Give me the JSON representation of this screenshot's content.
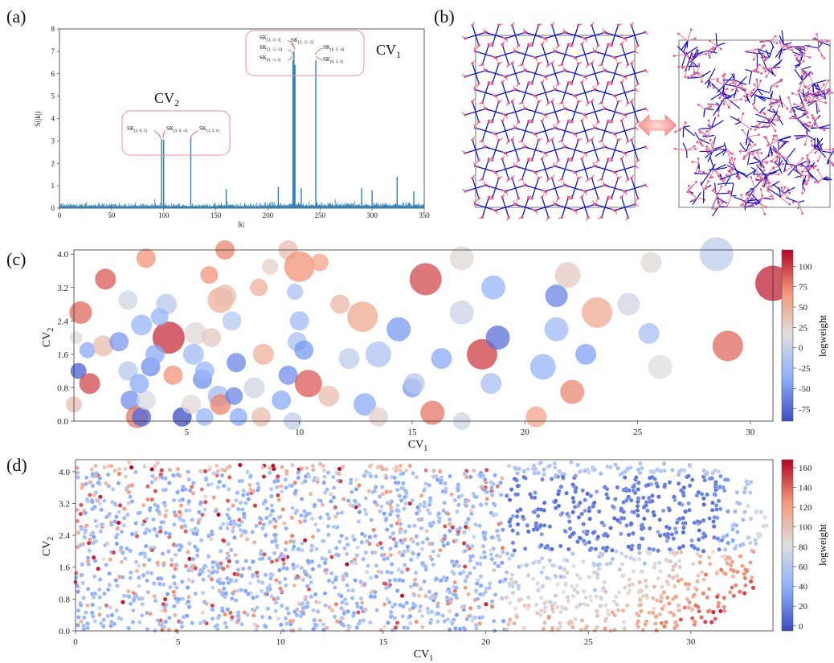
{
  "panels": {
    "a": "(a)",
    "b": "(b)",
    "c": "(c)",
    "d": "(d)"
  },
  "chart_data": [
    {
      "id": "a",
      "type": "bar",
      "xlabel": "|k|",
      "ylabel": "S(|k|)",
      "xlim": [
        0,
        350
      ],
      "ylim": [
        0,
        8
      ],
      "xticks": [
        "0",
        "50",
        "100",
        "150",
        "200",
        "250",
        "300",
        "350"
      ],
      "yticks": [
        "0",
        "1",
        "2",
        "3",
        "4",
        "5",
        "6",
        "7",
        "8"
      ],
      "peaks": [
        {
          "x": 98,
          "y": 3.1
        },
        {
          "x": 100,
          "y": 3.05
        },
        {
          "x": 126,
          "y": 3.15
        },
        {
          "x": 224,
          "y": 6.6
        },
        {
          "x": 225,
          "y": 7.0
        },
        {
          "x": 226,
          "y": 6.4
        },
        {
          "x": 246,
          "y": 6.6
        },
        {
          "x": 324,
          "y": 1.4
        },
        {
          "x": 210,
          "y": 0.95
        },
        {
          "x": 232,
          "y": 0.9
        },
        {
          "x": 290,
          "y": 0.9
        },
        {
          "x": 160,
          "y": 0.85
        },
        {
          "x": 300,
          "y": 0.8
        },
        {
          "x": 340,
          "y": 0.75
        }
      ],
      "noise_level": 0.15,
      "group_labels": {
        "cv1": "CV",
        "cv1_sub": "1",
        "cv2": "CV",
        "cv2_sub": "2"
      },
      "cv2_labels": [
        {
          "base": "SK",
          "sub": "[2, 0, 3]"
        },
        {
          "base": "SK",
          "sub": "[3, 0, -2]"
        },
        {
          "base": "SK",
          "sub": "[3, 2, 1]"
        }
      ],
      "cv1_labels": [
        {
          "base": "SK",
          "sub": "[3, -2, 3]"
        },
        {
          "base": "SK",
          "sub": "[3, -2, -3]"
        },
        {
          "base": "SK",
          "sub": "[3, -3, -2]"
        },
        {
          "base": "SK",
          "sub": "[3, -3, 2]"
        },
        {
          "base": "SK",
          "sub": "[0, 3, -4]"
        },
        {
          "base": "SK",
          "sub": "[0, 3, 4]"
        }
      ]
    },
    {
      "id": "c",
      "type": "scatter",
      "xlabel": "CV",
      "xlabel_sub": "1",
      "ylabel": "CV",
      "ylabel_sub": "2",
      "xlim": [
        0,
        31
      ],
      "ylim": [
        0,
        4.1
      ],
      "xticks": [
        5,
        10,
        15,
        20,
        25,
        30
      ],
      "yticks": [
        "0.0",
        "0.8",
        "1.6",
        "2.4",
        "3.2",
        "4.0"
      ],
      "colorbar": {
        "label": "logweight",
        "min": -90,
        "max": 120,
        "ticks": [
          100,
          75,
          50,
          25,
          0,
          -25,
          -50,
          -75
        ]
      },
      "points": [
        [
          0.3,
          2.6,
          14,
          85
        ],
        [
          1.4,
          3.4,
          13,
          90
        ],
        [
          3.2,
          3.9,
          12,
          70
        ],
        [
          6.7,
          4.1,
          12,
          75
        ],
        [
          4.2,
          2.0,
          20,
          105
        ],
        [
          6.5,
          2.9,
          16,
          50
        ],
        [
          8.7,
          3.7,
          10,
          25
        ],
        [
          9.5,
          4.1,
          12,
          40
        ],
        [
          10.0,
          3.7,
          19,
          70
        ],
        [
          10.9,
          3.8,
          11,
          60
        ],
        [
          12.8,
          2.5,
          19,
          55
        ],
        [
          11.8,
          2.8,
          12,
          45
        ],
        [
          15.6,
          3.4,
          20,
          95
        ],
        [
          17.2,
          3.9,
          15,
          20
        ],
        [
          17.2,
          2.6,
          15,
          2
        ],
        [
          18.6,
          3.2,
          15,
          -30
        ],
        [
          21.4,
          3.0,
          14,
          -60
        ],
        [
          21.9,
          3.5,
          16,
          30
        ],
        [
          23.2,
          2.6,
          19,
          55
        ],
        [
          24.6,
          2.8,
          14,
          5
        ],
        [
          25.6,
          3.8,
          13,
          20
        ],
        [
          25.5,
          2.1,
          13,
          -20
        ],
        [
          26.0,
          1.3,
          15,
          15
        ],
        [
          28.5,
          4.0,
          21,
          -5
        ],
        [
          29.0,
          1.8,
          19,
          85
        ],
        [
          31.0,
          3.3,
          22,
          110
        ],
        [
          0.6,
          1.7,
          10,
          -40
        ],
        [
          0.2,
          1.2,
          10,
          -80
        ],
        [
          0.7,
          0.9,
          13,
          95
        ],
        [
          1.3,
          1.8,
          13,
          40
        ],
        [
          2.0,
          1.9,
          12,
          -50
        ],
        [
          2.4,
          1.2,
          12,
          -10
        ],
        [
          2.5,
          0.5,
          12,
          -55
        ],
        [
          2.8,
          0.1,
          14,
          80
        ],
        [
          3.0,
          0.1,
          12,
          -75
        ],
        [
          3.2,
          0.5,
          12,
          10
        ],
        [
          2.9,
          0.9,
          12,
          -40
        ],
        [
          3.0,
          2.3,
          13,
          -30
        ],
        [
          3.4,
          1.3,
          12,
          -55
        ],
        [
          3.6,
          1.6,
          12,
          -40
        ],
        [
          4.4,
          1.1,
          12,
          70
        ],
        [
          4.8,
          0.1,
          12,
          -90
        ],
        [
          5.2,
          0.4,
          12,
          20
        ],
        [
          5.4,
          2.1,
          14,
          20
        ],
        [
          5.3,
          1.6,
          13,
          -25
        ],
        [
          5.7,
          1.0,
          12,
          -55
        ],
        [
          5.8,
          0.1,
          11,
          -30
        ],
        [
          6.4,
          0.6,
          13,
          -25
        ],
        [
          6.5,
          0.4,
          13,
          75
        ],
        [
          7.2,
          1.4,
          12,
          -60
        ],
        [
          7.0,
          2.4,
          12,
          -10
        ],
        [
          7.1,
          0.6,
          11,
          -60
        ],
        [
          7.3,
          0.1,
          11,
          -40
        ],
        [
          8.0,
          0.8,
          13,
          5
        ],
        [
          8.4,
          1.6,
          13,
          50
        ],
        [
          8.3,
          0.1,
          12,
          40
        ],
        [
          9.2,
          0.5,
          12,
          -40
        ],
        [
          9.5,
          1.1,
          12,
          -55
        ],
        [
          9.7,
          0.0,
          11,
          -5
        ],
        [
          9.9,
          1.9,
          12,
          -20
        ],
        [
          10.2,
          1.7,
          12,
          -50
        ],
        [
          10.4,
          0.9,
          17,
          90
        ],
        [
          11.3,
          0.6,
          13,
          40
        ],
        [
          12.2,
          1.5,
          13,
          -5
        ],
        [
          12.9,
          0.4,
          14,
          -40
        ],
        [
          13.5,
          0.1,
          12,
          25
        ],
        [
          13.5,
          1.6,
          16,
          -15
        ],
        [
          14.4,
          2.2,
          15,
          -50
        ],
        [
          15.0,
          0.8,
          12,
          -50
        ],
        [
          15.1,
          0.9,
          13,
          -10
        ],
        [
          15.9,
          0.2,
          15,
          80
        ],
        [
          16.3,
          1.5,
          13,
          -40
        ],
        [
          17.2,
          0.0,
          11,
          5
        ],
        [
          18.1,
          1.6,
          19,
          100
        ],
        [
          18.5,
          0.9,
          13,
          -20
        ],
        [
          18.8,
          2.0,
          15,
          -70
        ],
        [
          20.5,
          0.1,
          13,
          60
        ],
        [
          20.8,
          1.3,
          16,
          -30
        ],
        [
          21.4,
          2.2,
          15,
          -25
        ],
        [
          22.1,
          0.7,
          15,
          75
        ],
        [
          22.7,
          1.6,
          13,
          -45
        ],
        [
          0.0,
          0.4,
          10,
          40
        ],
        [
          0.1,
          2.0,
          8,
          15
        ],
        [
          4.1,
          2.8,
          13,
          -10
        ],
        [
          6.0,
          3.5,
          11,
          70
        ],
        [
          6.7,
          3.0,
          14,
          40
        ],
        [
          8.2,
          3.2,
          11,
          50
        ],
        [
          9.8,
          3.1,
          10,
          -20
        ],
        [
          10.0,
          2.4,
          12,
          -25
        ],
        [
          6.1,
          2.0,
          12,
          30
        ],
        [
          3.8,
          2.5,
          11,
          -30
        ],
        [
          2.4,
          2.9,
          12,
          5
        ],
        [
          5.8,
          1.2,
          12,
          -30
        ]
      ]
    },
    {
      "id": "d",
      "type": "scatter",
      "xlabel": "CV",
      "xlabel_sub": "1",
      "ylabel": "CV",
      "ylabel_sub": "2",
      "xlim": [
        0,
        34
      ],
      "ylim": [
        0,
        4.3
      ],
      "xticks": [
        0,
        5,
        10,
        15,
        20,
        25,
        30
      ],
      "yticks": [
        "0.0",
        "0.8",
        "1.6",
        "2.4",
        "3.2",
        "4.0"
      ],
      "colorbar": {
        "label": "logweight",
        "min": -5,
        "max": 168,
        "ticks": [
          160,
          140,
          120,
          100,
          80,
          60,
          40,
          20,
          0
        ]
      },
      "point_count": 9000
    }
  ]
}
